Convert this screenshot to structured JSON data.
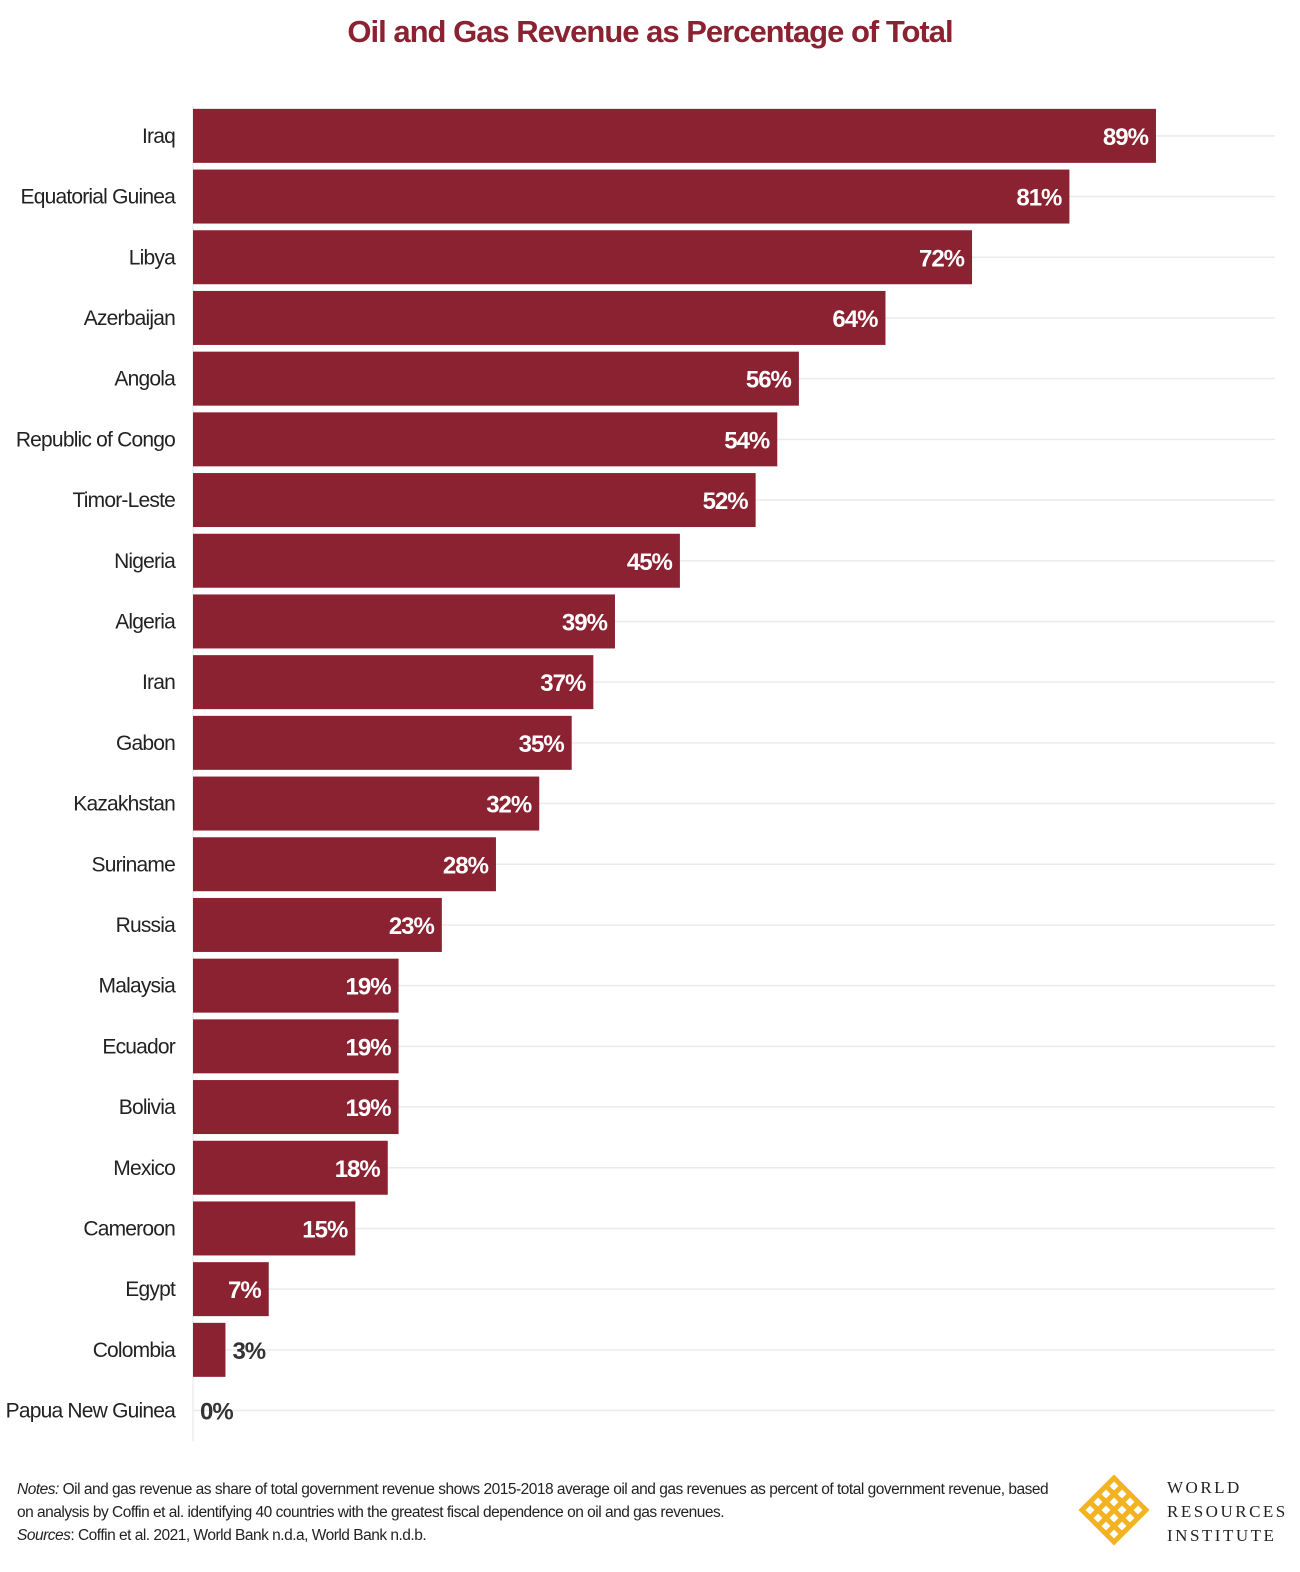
{
  "chart_data": {
    "type": "bar",
    "orientation": "horizontal",
    "title": "Oil and Gas Revenue as Percentage of Total",
    "categories": [
      "Iraq",
      "Equatorial Guinea",
      "Libya",
      "Azerbaijan",
      "Angola",
      "Republic of Congo",
      "Timor-Leste",
      "Nigeria",
      "Algeria",
      "Iran",
      "Gabon",
      "Kazakhstan",
      "Suriname",
      "Russia",
      "Malaysia",
      "Ecuador",
      "Bolivia",
      "Mexico",
      "Cameroon",
      "Egypt",
      "Colombia",
      "Papua New Guinea"
    ],
    "values": [
      89,
      81,
      72,
      64,
      56,
      54,
      52,
      45,
      39,
      37,
      35,
      32,
      28,
      23,
      19,
      19,
      19,
      18,
      15,
      7,
      3,
      0
    ],
    "value_labels": [
      "89%",
      "81%",
      "72%",
      "64%",
      "56%",
      "54%",
      "52%",
      "45%",
      "39%",
      "37%",
      "35%",
      "32%",
      "28%",
      "23%",
      "19%",
      "19%",
      "19%",
      "18%",
      "15%",
      "7%",
      "3%",
      "0%"
    ],
    "xlim": [
      0,
      100
    ],
    "grid": true,
    "bar_color": "#8b2231",
    "title_color": "#8b2231"
  },
  "notes": {
    "notes_label": "Notes:",
    "notes_text": " Oil and gas revenue as share of total government revenue shows 2015-2018 average oil and gas revenues as percent of total government revenue, based on analysis by Coffin et al. identifying 40 countries with the greatest fiscal dependence on oil and gas revenues.",
    "sources_label": "Sources",
    "sources_text": ": Coffin et al. 2021, World Bank n.d.a, World Bank n.d.b."
  },
  "logo": {
    "line1": "WORLD",
    "line2": "RESOURCES",
    "line3": "INSTITUTE",
    "color": "#f2b320"
  }
}
